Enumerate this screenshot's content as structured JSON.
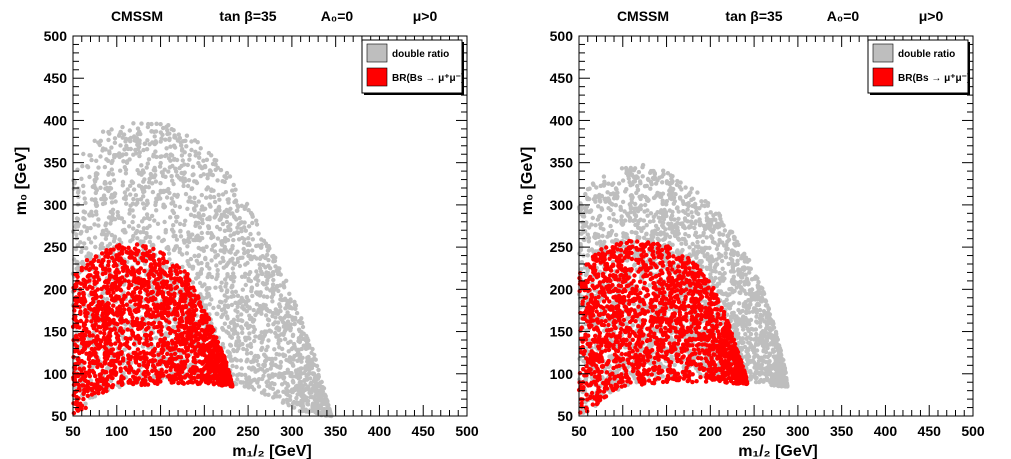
{
  "chart_data": [
    {
      "type": "scatter",
      "title": {
        "model": "CMSSM",
        "tanb": "tan β=35",
        "a0": "A₀=0",
        "mu": "μ>0"
      },
      "xlabel": "m₁/₂ [GeV]",
      "ylabel": "m₀ [GeV]",
      "xlim": [
        50,
        500
      ],
      "ylim": [
        50,
        500
      ],
      "xticks": [
        "50",
        "100",
        "150",
        "200",
        "250",
        "300",
        "350",
        "400",
        "450",
        "500"
      ],
      "yticks": [
        "50",
        "100",
        "150",
        "200",
        "250",
        "300",
        "350",
        "400",
        "450",
        "500"
      ],
      "grid": false,
      "legend_position": "top-right",
      "series": [
        {
          "name": "double ratio",
          "color": "#bebebe",
          "boundary": {
            "upper": [
              [
                50,
                340
              ],
              [
                60,
                360
              ],
              [
                80,
                385
              ],
              [
                100,
                395
              ],
              [
                130,
                398
              ],
              [
                160,
                395
              ],
              [
                190,
                380
              ],
              [
                220,
                350
              ],
              [
                250,
                300
              ],
              [
                270,
                260
              ],
              [
                290,
                220
              ],
              [
                310,
                170
              ],
              [
                330,
                110
              ],
              [
                340,
                70
              ],
              [
                345,
                50
              ]
            ],
            "lower": [
              [
                50,
                50
              ],
              [
                80,
                70
              ],
              [
                110,
                85
              ],
              [
                150,
                95
              ],
              [
                190,
                95
              ],
              [
                230,
                90
              ],
              [
                270,
                75
              ],
              [
                310,
                55
              ],
              [
                340,
                50
              ]
            ]
          }
        },
        {
          "name": "BR(Bs → μ⁺μ⁻)",
          "color": "#ff0000",
          "boundary": {
            "upper": [
              [
                50,
                215
              ],
              [
                70,
                240
              ],
              [
                100,
                252
              ],
              [
                125,
                255
              ],
              [
                150,
                245
              ],
              [
                180,
                220
              ],
              [
                200,
                180
              ],
              [
                215,
                140
              ],
              [
                225,
                115
              ],
              [
                230,
                95
              ],
              [
                232,
                85
              ]
            ],
            "lower": [
              [
                50,
                50
              ],
              [
                60,
                55
              ],
              [
                75,
                70
              ],
              [
                100,
                85
              ],
              [
                150,
                88
              ],
              [
                200,
                88
              ],
              [
                230,
                85
              ]
            ]
          }
        }
      ]
    },
    {
      "type": "scatter",
      "title": {
        "model": "CMSSM",
        "tanb": "tan β=35",
        "a0": "A₀=0",
        "mu": "μ>0"
      },
      "xlabel": "m₁/₂ [GeV]",
      "ylabel": "m₀ [GeV]",
      "xlim": [
        50,
        500
      ],
      "ylim": [
        50,
        500
      ],
      "xticks": [
        "50",
        "100",
        "150",
        "200",
        "250",
        "300",
        "350",
        "400",
        "450",
        "500"
      ],
      "yticks": [
        "50",
        "100",
        "150",
        "200",
        "250",
        "300",
        "350",
        "400",
        "450",
        "500"
      ],
      "grid": false,
      "legend_position": "top-right",
      "series": [
        {
          "name": "double ratio",
          "color": "#bebebe",
          "boundary": {
            "upper": [
              [
                50,
                300
              ],
              [
                60,
                320
              ],
              [
                80,
                338
              ],
              [
                100,
                345
              ],
              [
                120,
                348
              ],
              [
                150,
                340
              ],
              [
                180,
                320
              ],
              [
                210,
                290
              ],
              [
                240,
                245
              ],
              [
                260,
                200
              ],
              [
                275,
                150
              ],
              [
                285,
                110
              ],
              [
                288,
                85
              ]
            ],
            "lower": [
              [
                50,
                50
              ],
              [
                75,
                65
              ],
              [
                100,
                85
              ],
              [
                150,
                95
              ],
              [
                200,
                95
              ],
              [
                250,
                90
              ],
              [
                280,
                85
              ],
              [
                288,
                85
              ]
            ]
          }
        },
        {
          "name": "BR(Bs → μ⁺μ⁻)",
          "color": "#ff0000",
          "boundary": {
            "upper": [
              [
                50,
                220
              ],
              [
                70,
                245
              ],
              [
                90,
                255
              ],
              [
                120,
                260
              ],
              [
                150,
                252
              ],
              [
                180,
                235
              ],
              [
                205,
                200
              ],
              [
                220,
                165
              ],
              [
                232,
                125
              ],
              [
                240,
                100
              ],
              [
                242,
                90
              ]
            ],
            "lower": [
              [
                50,
                50
              ],
              [
                60,
                55
              ],
              [
                75,
                68
              ],
              [
                100,
                85
              ],
              [
                150,
                90
              ],
              [
                200,
                90
              ],
              [
                240,
                88
              ]
            ]
          }
        }
      ]
    }
  ]
}
